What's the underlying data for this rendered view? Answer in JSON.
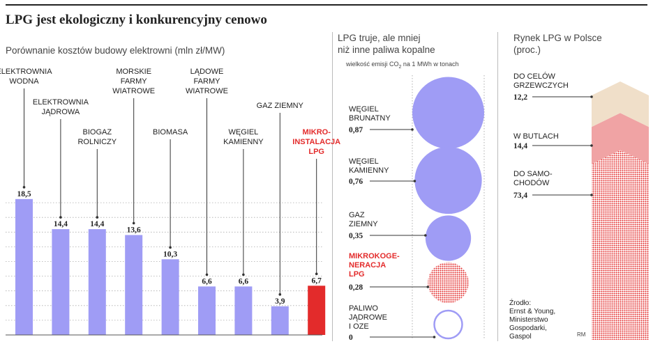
{
  "title": "LPG jest ekologiczny i konkurencyjny cenowo",
  "panel1": {
    "subtitle": "Porównanie kosztów budowy elektrowni (mln zł/MW)"
  },
  "panel2": {
    "subtitle_line1": "LPG truje, ale mniej",
    "subtitle_line2": "niż inne paliwa kopalne",
    "note_a": "wielkość emisji CO",
    "note_sub": "2",
    "note_b": " na 1 MWh w tonach"
  },
  "panel3": {
    "subtitle_line1": "Rynek LPG w Polsce",
    "subtitle_line2": "(proc.)"
  },
  "source": [
    "Źrodło:",
    "Ernst & Young,",
    "Ministerstwo",
    "Gospodarki,",
    "Gaspol"
  ],
  "credit": "RM",
  "colors": {
    "bar": "#9f9cf5",
    "highlight": "#e32b2b",
    "heating": "#f0dfc9",
    "bottled": "#f0a3a4",
    "auto": "#e32b2b"
  },
  "chart_data": [
    {
      "type": "bar",
      "title": "Porównanie kosztów budowy elektrowni (mln zł/MW)",
      "categories": [
        [
          "ELEKTROWNIA",
          "WODNA"
        ],
        [
          "ELEKTROWNIA",
          "JĄDROWA"
        ],
        [
          "BIOGAZ",
          "ROLNICZY"
        ],
        [
          "MORSKIE",
          "FARMY",
          "WIATROWE"
        ],
        [
          "BIOMASA"
        ],
        [
          "LĄDOWE",
          "FARMY",
          "WIATROWE"
        ],
        [
          "WĘGIEL",
          "KAMIENNY"
        ],
        [
          "GAZ ZIEMNY"
        ],
        [
          "MIKRO-",
          "INSTALACJA",
          "LPG"
        ]
      ],
      "values": [
        18.5,
        14.4,
        14.4,
        13.6,
        10.3,
        6.6,
        6.6,
        3.9,
        6.7
      ],
      "value_labels": [
        "18,5",
        "14,4",
        "14,4",
        "13,6",
        "10,3",
        "6,6",
        "6,6",
        "3,9",
        "6,7"
      ],
      "highlight_index": 8,
      "ylim": [
        0,
        20
      ],
      "grid": "dotted"
    },
    {
      "type": "bubble",
      "title": "LPG truje, ale mniej niż inne paliwa kopalne",
      "categories": [
        [
          "WĘGIEL",
          "BRUNATNY"
        ],
        [
          "WĘGIEL",
          "KAMIENNY"
        ],
        [
          "GAZ",
          "ZIEMNY"
        ],
        [
          "MIKROKOGE-",
          "NERACJA",
          "LPG"
        ],
        [
          "PALIWO",
          "JĄDROWE",
          "I OZE"
        ]
      ],
      "values": [
        0.87,
        0.76,
        0.35,
        0.28,
        0
      ],
      "value_labels": [
        "0,87",
        "0,76",
        "0,35",
        "0,28",
        "0"
      ],
      "highlight_index": 3
    },
    {
      "type": "stacked_area",
      "title": "Rynek LPG w Polsce (proc.)",
      "categories": [
        [
          "DO CELÓW",
          "GRZEWCZYCH"
        ],
        [
          "W BUTLACH"
        ],
        [
          "DO SAMO-",
          "CHODÓW"
        ]
      ],
      "values": [
        12.2,
        14.4,
        73.4
      ],
      "value_labels": [
        "12,2",
        "14,4",
        "73,4"
      ]
    }
  ]
}
